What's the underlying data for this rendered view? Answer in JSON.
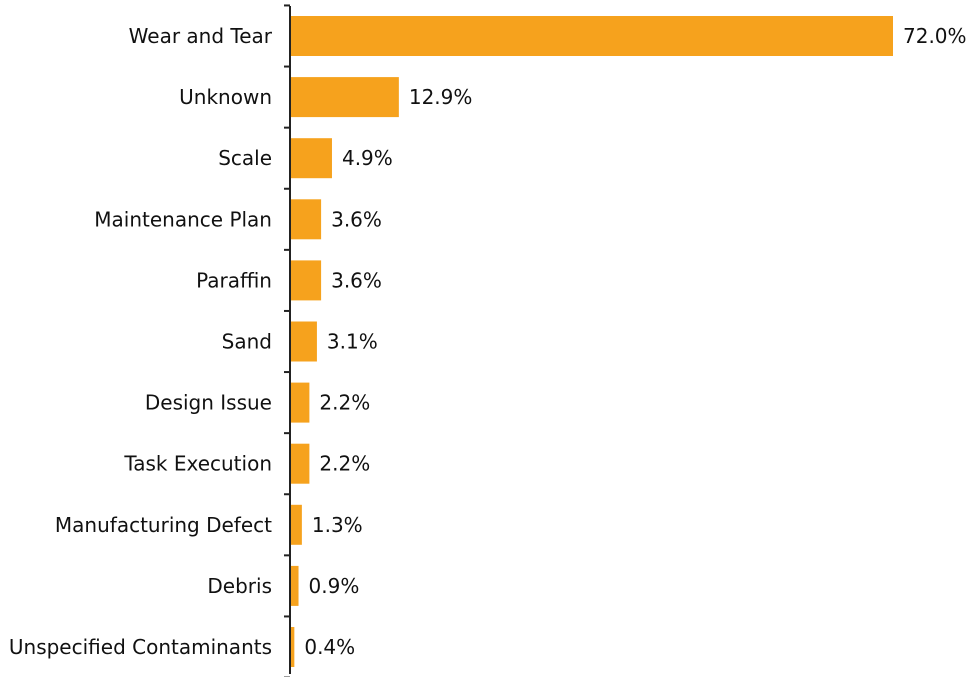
{
  "chart_data": {
    "type": "bar",
    "orientation": "horizontal",
    "categories": [
      "Wear and Tear",
      "Unknown",
      "Scale",
      "Maintenance Plan",
      "Paraffin",
      "Sand",
      "Design Issue",
      "Task Execution",
      "Manufacturing Defect",
      "Debris",
      "Unspecified Contaminants"
    ],
    "values": [
      72.0,
      12.9,
      4.9,
      3.6,
      3.6,
      3.1,
      2.2,
      2.2,
      1.3,
      0.9,
      0.4
    ],
    "value_labels": [
      "72.0%",
      "12.9%",
      "4.9%",
      "3.6%",
      "3.6%",
      "3.1%",
      "2.2%",
      "2.2%",
      "1.3%",
      "0.9%",
      "0.4%"
    ],
    "xlim": [
      0,
      72.0
    ],
    "grid": false,
    "legend": "none",
    "bar_color": "#F6A21D",
    "axis_color": "#222222",
    "text_color": "#111111"
  }
}
